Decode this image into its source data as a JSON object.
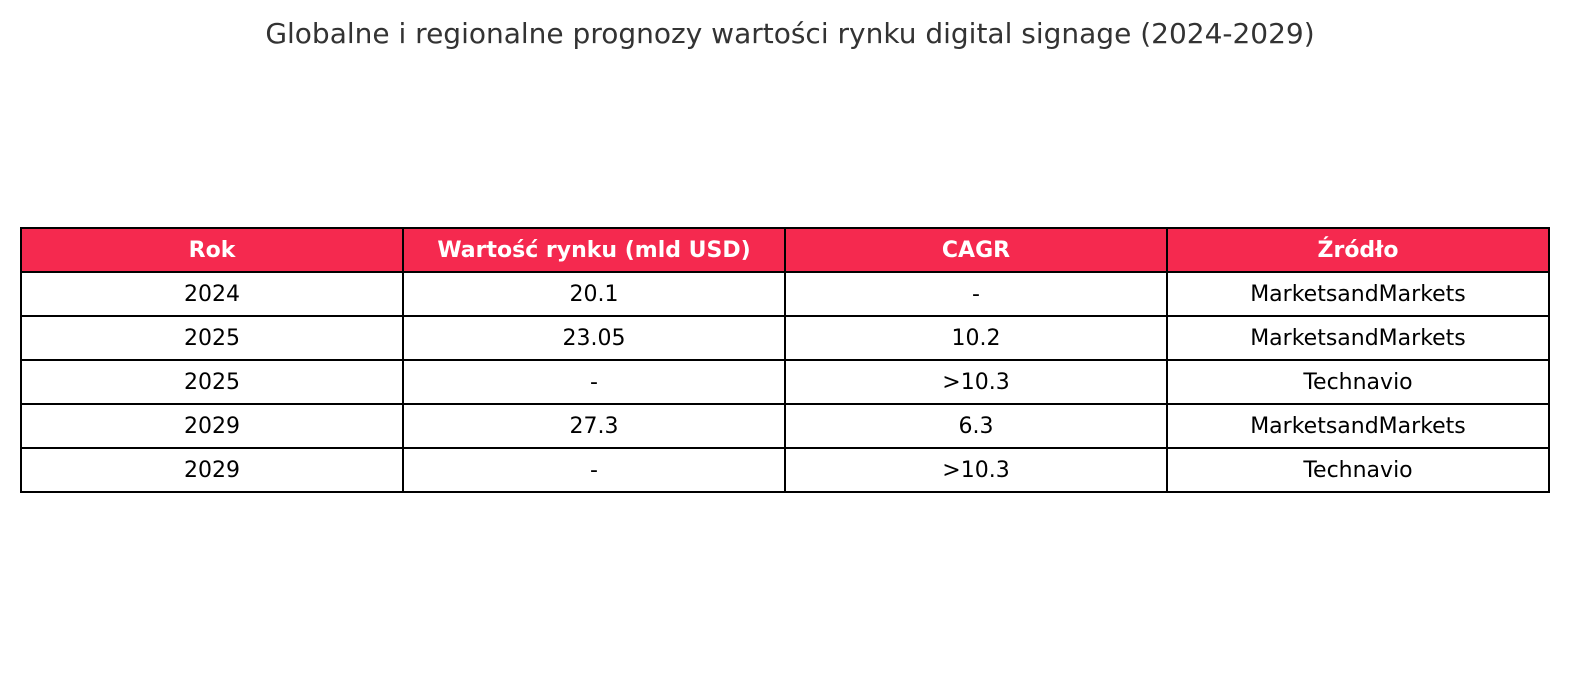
{
  "chart_data": {
    "type": "table",
    "title": "Globalne i regionalne prognozy wartości rynku digital signage (2024-2029)",
    "columns": [
      "Rok",
      "Wartość rynku (mld USD)",
      "CAGR",
      "Źródło"
    ],
    "rows": [
      [
        "2024",
        "20.1",
        "-",
        "MarketsandMarkets"
      ],
      [
        "2025",
        "23.05",
        "10.2",
        "MarketsandMarkets"
      ],
      [
        "2025",
        "-",
        ">10.3",
        "Technavio"
      ],
      [
        "2029",
        "27.3",
        "6.3",
        "MarketsandMarkets"
      ],
      [
        "2029",
        "-",
        ">10.3",
        "Technavio"
      ]
    ],
    "colors": {
      "header_background": "#f5294f",
      "header_text": "#ffffff",
      "border": "#000000",
      "title_text": "#333333"
    }
  }
}
